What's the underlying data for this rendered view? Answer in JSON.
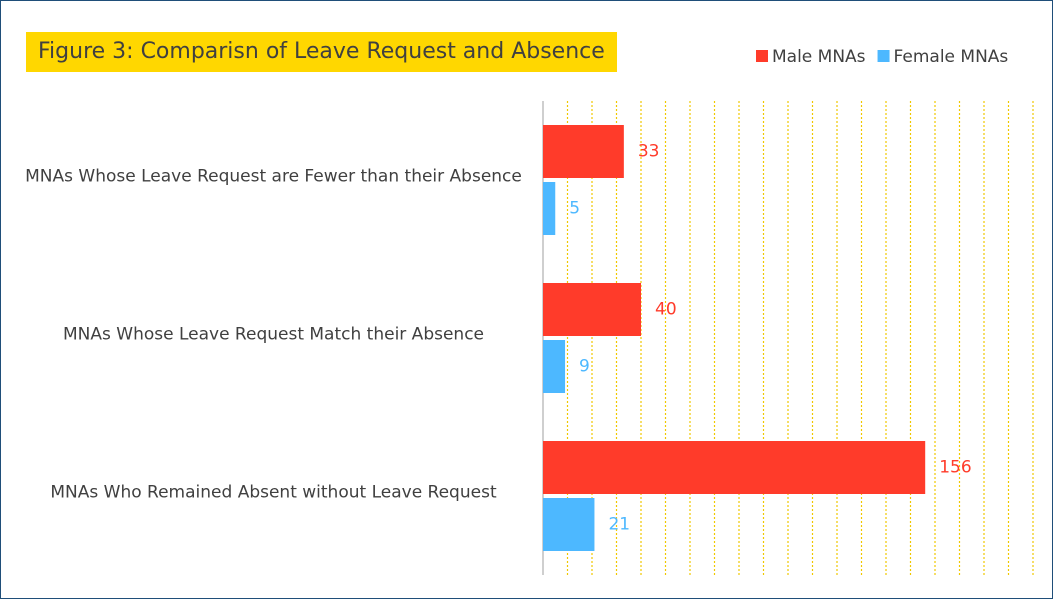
{
  "chart_data": {
    "type": "hbar",
    "title": "Figure 3: Comparisn of Leave Request and Absence",
    "categories": [
      "MNAs Whose Leave Request are Fewer than their Absence",
      "MNAs Whose Leave Request Match their Absence",
      "MNAs Who Remained Absent without Leave Request"
    ],
    "series": [
      {
        "name": "Male MNAs",
        "color": "#ff3b2a",
        "values": [
          33,
          40,
          156
        ]
      },
      {
        "name": "Female MNAs",
        "color": "#4db8ff",
        "values": [
          5,
          9,
          21
        ]
      }
    ],
    "xlim": [
      0,
      200
    ],
    "xticks": [
      0,
      10,
      20,
      30,
      40,
      50,
      60,
      70,
      80,
      90,
      100,
      110,
      120,
      130,
      140,
      150,
      160,
      170,
      180,
      190,
      200
    ],
    "grid": true,
    "legend": "top-right"
  }
}
